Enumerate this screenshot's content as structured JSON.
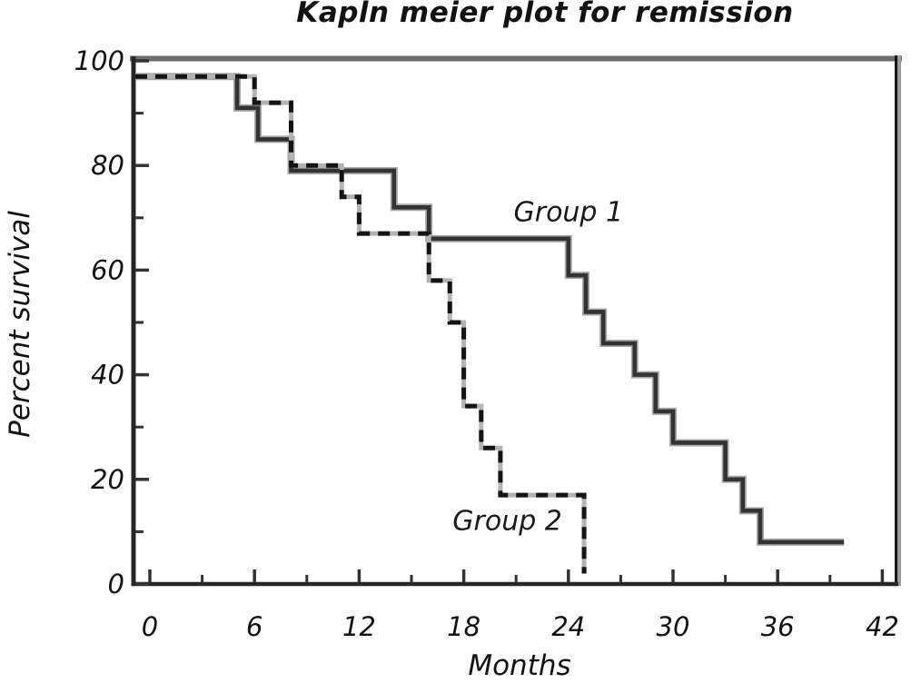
{
  "title": "Kapln meier plot for remission",
  "chart_data": {
    "type": "line",
    "subtype": "kaplan_meier_step",
    "title": "Kapln meier plot for remission",
    "xlabel": "Months",
    "ylabel": "Percent survival",
    "xlim": [
      0,
      42
    ],
    "ylim": [
      0,
      100
    ],
    "grid": false,
    "legend_position": "inline-annotations",
    "x_major_ticks": [
      0,
      6,
      12,
      18,
      24,
      30,
      36,
      42
    ],
    "x_minor_ticks": [
      3,
      9,
      15,
      21,
      27,
      33,
      39
    ],
    "y_major_ticks": [
      100,
      80,
      60,
      40,
      20,
      0
    ],
    "y_minor_ticks": [
      90,
      70,
      50,
      30,
      10
    ],
    "series": [
      {
        "name": "Group 1",
        "line_style": "solid",
        "color": "#333333",
        "steps": [
          [
            0,
            97
          ],
          [
            5,
            91
          ],
          [
            6.2,
            85
          ],
          [
            8.1,
            79
          ],
          [
            14,
            72
          ],
          [
            16,
            66
          ],
          [
            24,
            59
          ],
          [
            25,
            52
          ],
          [
            26,
            46
          ],
          [
            27.8,
            40
          ],
          [
            29,
            33
          ],
          [
            30,
            27
          ],
          [
            33,
            20
          ],
          [
            34,
            14
          ],
          [
            35,
            8
          ]
        ],
        "end_month": 39.8
      },
      {
        "name": "Group 2",
        "line_style": "dashed",
        "color": "#141414",
        "steps": [
          [
            0,
            97
          ],
          [
            6,
            92
          ],
          [
            8.1,
            80
          ],
          [
            11,
            74
          ],
          [
            12,
            67
          ],
          [
            16,
            58
          ],
          [
            17.2,
            50
          ],
          [
            18,
            34
          ],
          [
            19,
            26
          ],
          [
            20.1,
            17
          ],
          [
            24.9,
            2
          ]
        ],
        "end_month": 24.9
      }
    ],
    "annotations": [
      {
        "text": "Group 1",
        "month": 24,
        "percent": 71
      },
      {
        "text": "Group 2",
        "month": 20.5,
        "percent": 12
      }
    ]
  },
  "colors": {
    "frame_top": "#6e6e6e",
    "frame_right_outer": "#9c9c9c",
    "frame_right_inner": "#161616",
    "axis": "#262626",
    "tick": "#333333",
    "solid_halo": "#a8a8a8",
    "dash_halo": "#b3b3b3",
    "background": "#ffffff",
    "text": "#121212"
  }
}
